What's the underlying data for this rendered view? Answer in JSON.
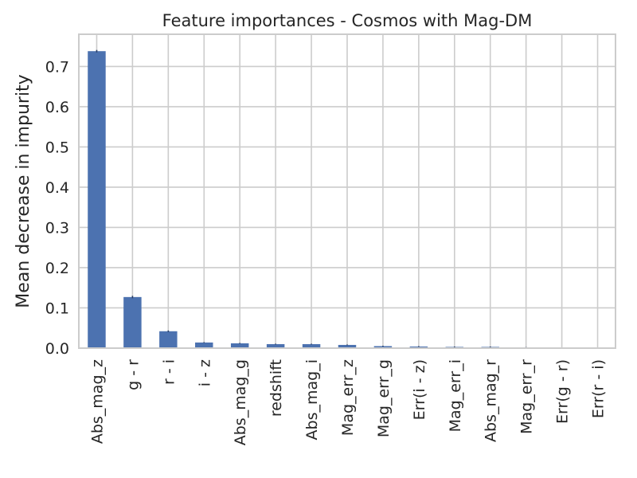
{
  "chart_data": {
    "type": "bar",
    "title": "Feature importances - Cosmos with Mag-DM",
    "xlabel": "",
    "ylabel": "Mean decrease in impurity",
    "categories": [
      "Abs_mag_z",
      "g - r",
      "r - i",
      "i - z",
      "Abs_mag_g",
      "redshift",
      "Abs_mag_i",
      "Mag_err_z",
      "Mag_err_g",
      "Err(i - z)",
      "Mag_err_i",
      "Abs_mag_r",
      "Mag_err_r",
      "Err(g - r)",
      "Err(r - i)"
    ],
    "values": [
      0.738,
      0.127,
      0.042,
      0.014,
      0.012,
      0.01,
      0.01,
      0.008,
      0.005,
      0.004,
      0.003,
      0.003,
      0.002,
      0.001,
      0.001
    ],
    "errors": [
      0.003,
      0.003,
      0.002,
      0.001,
      0.001,
      0.001,
      0.001,
      0.001,
      0.001,
      0.001,
      0.001,
      0.001,
      0.0005,
      0.0005,
      0.0005
    ],
    "ylim": [
      0,
      0.78
    ],
    "yticks": [
      0.0,
      0.1,
      0.2,
      0.3,
      0.4,
      0.5,
      0.6,
      0.7
    ],
    "ytick_labels": [
      "0.0",
      "0.1",
      "0.2",
      "0.3",
      "0.4",
      "0.5",
      "0.6",
      "0.7"
    ],
    "grid": true,
    "bar_color": "#4c72b0",
    "error_color": "#2a3f66",
    "legend": "none"
  }
}
